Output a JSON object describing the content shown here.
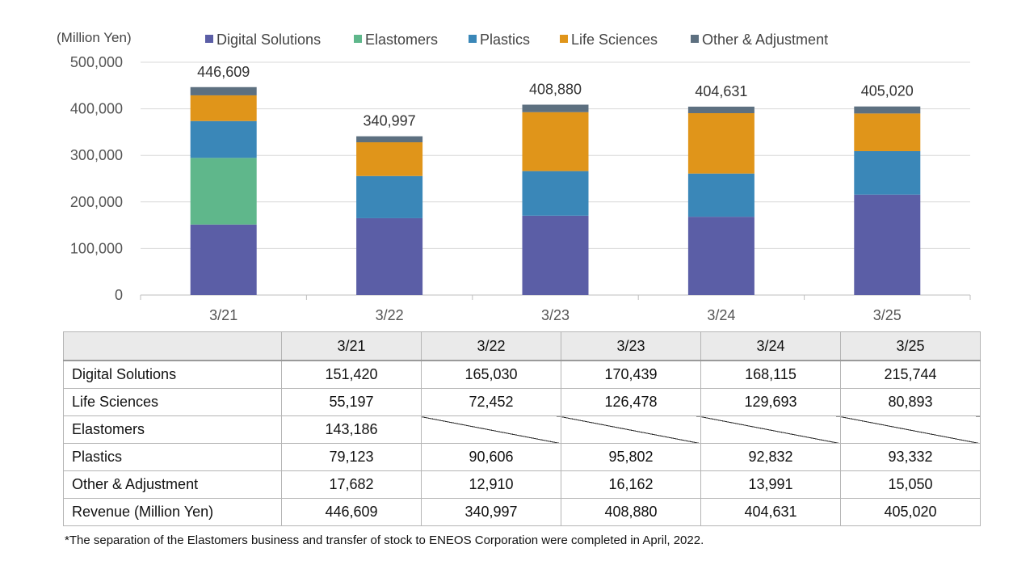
{
  "chart_data": {
    "type": "bar",
    "stacked": true,
    "unit_label": "(Million Yen)",
    "categories": [
      "3/21",
      "3/22",
      "3/23",
      "3/24",
      "3/25"
    ],
    "ylim": [
      0,
      500000
    ],
    "yticks": [
      "0",
      "100,000",
      "200,000",
      "300,000",
      "400,000",
      "500,000"
    ],
    "legend_position": "top",
    "series": [
      {
        "name": "Digital Solutions",
        "color": "#5b5ea6",
        "values": [
          151420,
          165030,
          170439,
          168115,
          215744
        ]
      },
      {
        "name": "Elastomers",
        "color": "#5fb78b",
        "values": [
          143186,
          null,
          null,
          null,
          null
        ]
      },
      {
        "name": "Plastics",
        "color": "#3a87b8",
        "values": [
          79123,
          90606,
          95802,
          92832,
          93332
        ]
      },
      {
        "name": "Life Sciences",
        "color": "#e0951a",
        "values": [
          55197,
          72452,
          126478,
          129693,
          80893
        ]
      },
      {
        "name": "Other & Adjustment",
        "color": "#5d7080",
        "values": [
          17682,
          12910,
          16162,
          13991,
          15050
        ]
      }
    ],
    "total_labels": [
      "446,609",
      "340,997",
      "408,880",
      "404,631",
      "405,020"
    ]
  },
  "table": {
    "columns": [
      "3/21",
      "3/22",
      "3/23",
      "3/24",
      "3/25"
    ],
    "rows": [
      {
        "name": "Digital Solutions",
        "cells": [
          "151,420",
          "165,030",
          "170,439",
          "168,115",
          "215,744"
        ]
      },
      {
        "name": "Life Sciences",
        "cells": [
          "55,197",
          "72,452",
          "126,478",
          "129,693",
          "80,893"
        ]
      },
      {
        "name": "Elastomers",
        "cells": [
          "143,186",
          null,
          null,
          null,
          null
        ]
      },
      {
        "name": "Plastics",
        "cells": [
          "79,123",
          "90,606",
          "95,802",
          "92,832",
          "93,332"
        ]
      },
      {
        "name": "Other & Adjustment",
        "cells": [
          "17,682",
          "12,910",
          "16,162",
          "13,991",
          "15,050"
        ]
      },
      {
        "name": "Revenue (Million Yen)",
        "cells": [
          "446,609",
          "340,997",
          "408,880",
          "404,631",
          "405,020"
        ]
      }
    ]
  },
  "footnote": "*The separation of the Elastomers business and transfer of stock to ENEOS Corporation were completed in April, 2022."
}
